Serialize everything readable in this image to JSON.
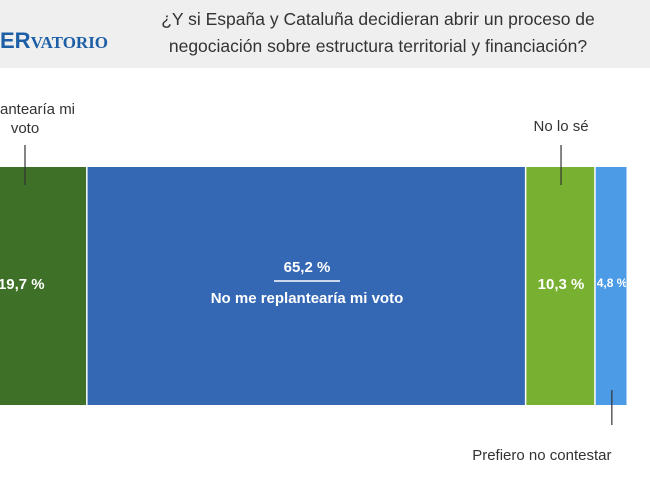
{
  "logo": {
    "left": "ER",
    "right": "VATORIO"
  },
  "chart_data": {
    "type": "stacked-bar",
    "title": [
      "¿Y si España y Cataluña decidieran abrir un proceso de",
      "negociación sobre estructura territorial y financiación?"
    ],
    "series": [
      {
        "name": "replantearía mi voto",
        "color": "#3e7127",
        "values": [
          19.7
        ],
        "value_labels": [
          "19,7 %"
        ]
      },
      {
        "name": "No me replantearía mi voto",
        "color": "#3467b4",
        "values": [
          65.2
        ],
        "value_labels": [
          "65,2 %"
        ]
      },
      {
        "name": "No lo sé",
        "color": "#78b131",
        "values": [
          10.3
        ],
        "value_labels": [
          "10,3 %"
        ]
      },
      {
        "name": "Prefiero no contestar",
        "color": "#4b9be6",
        "values": [
          4.8
        ],
        "value_labels": [
          "4,8 %"
        ]
      }
    ]
  }
}
